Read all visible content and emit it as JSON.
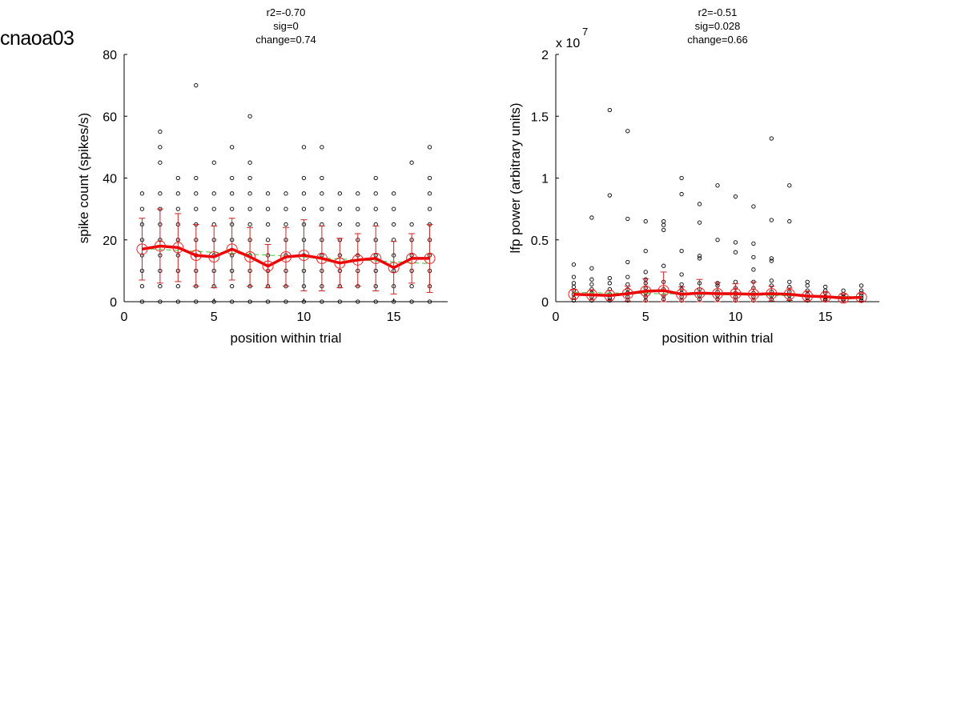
{
  "page_label": "cnaoa03",
  "colors": {
    "mean_line": "#ee0000",
    "mean_marker": "#ee2222",
    "error_bar": "#cc2222",
    "fit_line": "#33cc33",
    "points": "#000000"
  },
  "chart_data": [
    {
      "type": "scatter",
      "title_lines": [
        "r2=-0.70",
        "sig=0",
        "change=0.74"
      ],
      "xlabel": "position within trial",
      "ylabel": "spike count (spikes/s)",
      "exponent_label": "",
      "xlim": [
        0,
        18
      ],
      "ylim": [
        0,
        80
      ],
      "x_ticks": [
        0,
        5,
        10,
        15
      ],
      "x_tick_labels": [
        "0",
        "5",
        "10",
        "15"
      ],
      "y_ticks": [
        0,
        20,
        40,
        60,
        80
      ],
      "y_tick_labels": [
        "0",
        "20",
        "40",
        "60",
        "80"
      ],
      "mean": {
        "x": [
          1,
          2,
          3,
          4,
          5,
          6,
          7,
          8,
          9,
          10,
          11,
          12,
          13,
          14,
          15,
          16,
          17
        ],
        "y": [
          17,
          18,
          17.5,
          15,
          14.5,
          17,
          14.5,
          11.5,
          14.5,
          15,
          14,
          12.5,
          13.5,
          14,
          11,
          14,
          14
        ],
        "err": [
          10,
          12,
          11,
          10,
          10,
          10,
          9.5,
          7,
          9.5,
          11.5,
          10.5,
          8,
          8.5,
          10.5,
          8.5,
          8,
          11
        ]
      },
      "fit": {
        "x": [
          1,
          17
        ],
        "y": [
          17.2,
          12.3
        ]
      },
      "points": {
        "x": [
          1,
          1,
          1,
          1,
          1,
          1,
          1,
          1,
          2,
          2,
          2,
          2,
          2,
          2,
          2,
          2,
          2,
          2,
          2,
          3,
          3,
          3,
          3,
          3,
          3,
          3,
          3,
          3,
          4,
          4,
          4,
          4,
          4,
          4,
          4,
          4,
          4,
          4,
          5,
          5,
          5,
          5,
          5,
          5,
          5,
          5,
          5,
          6,
          6,
          6,
          6,
          6,
          6,
          6,
          6,
          6,
          6,
          7,
          7,
          7,
          7,
          7,
          7,
          7,
          7,
          7,
          7,
          7,
          8,
          8,
          8,
          8,
          8,
          8,
          8,
          8,
          9,
          9,
          9,
          9,
          9,
          9,
          9,
          9,
          10,
          10,
          10,
          10,
          10,
          10,
          10,
          10,
          10,
          10,
          11,
          11,
          11,
          11,
          11,
          11,
          11,
          11,
          11,
          11,
          12,
          12,
          12,
          12,
          12,
          12,
          12,
          12,
          13,
          13,
          13,
          13,
          13,
          13,
          13,
          13,
          14,
          14,
          14,
          14,
          14,
          14,
          14,
          14,
          14,
          15,
          15,
          15,
          15,
          15,
          15,
          15,
          15,
          16,
          16,
          16,
          16,
          16,
          16,
          16,
          17,
          17,
          17,
          17,
          17,
          17,
          17,
          17,
          17,
          17
        ],
        "y": [
          0,
          5,
          10,
          15,
          20,
          25,
          30,
          35,
          0,
          5,
          10,
          15,
          20,
          25,
          30,
          35,
          45,
          50,
          55,
          0,
          5,
          10,
          15,
          20,
          25,
          30,
          35,
          40,
          0,
          5,
          10,
          15,
          20,
          25,
          30,
          35,
          40,
          70,
          0,
          5,
          10,
          15,
          20,
          25,
          30,
          35,
          45,
          0,
          5,
          10,
          15,
          20,
          25,
          30,
          35,
          40,
          50,
          0,
          5,
          10,
          15,
          20,
          25,
          30,
          35,
          40,
          45,
          60,
          0,
          5,
          10,
          15,
          20,
          25,
          30,
          35,
          0,
          5,
          10,
          15,
          20,
          25,
          30,
          35,
          0,
          5,
          10,
          15,
          20,
          25,
          30,
          35,
          40,
          50,
          0,
          5,
          10,
          15,
          20,
          25,
          30,
          35,
          40,
          50,
          0,
          5,
          10,
          15,
          20,
          25,
          30,
          35,
          0,
          5,
          10,
          15,
          20,
          25,
          30,
          35,
          0,
          5,
          10,
          15,
          20,
          25,
          30,
          35,
          40,
          0,
          5,
          10,
          15,
          20,
          25,
          30,
          35,
          0,
          5,
          10,
          15,
          20,
          25,
          45,
          0,
          5,
          10,
          15,
          20,
          25,
          30,
          35,
          40,
          50
        ]
      }
    },
    {
      "type": "scatter",
      "title_lines": [
        "r2=-0.51",
        "sig=0.028",
        "change=0.66"
      ],
      "xlabel": "position within trial",
      "ylabel": "lfp power (arbitrary units)",
      "exponent_label": "x 10",
      "exponent_power": "7",
      "xlim": [
        0,
        18
      ],
      "ylim": [
        0,
        2
      ],
      "x_ticks": [
        0,
        5,
        10,
        15
      ],
      "x_tick_labels": [
        "0",
        "5",
        "10",
        "15"
      ],
      "y_ticks": [
        0,
        0.5,
        1,
        1.5,
        2
      ],
      "y_tick_labels": [
        "0",
        "0.5",
        "1",
        "1.5",
        "2"
      ],
      "mean": {
        "x": [
          1,
          2,
          3,
          4,
          5,
          6,
          7,
          8,
          9,
          10,
          11,
          12,
          13,
          14,
          15,
          16,
          17
        ],
        "y": [
          0.06,
          0.055,
          0.05,
          0.065,
          0.085,
          0.09,
          0.06,
          0.07,
          0.065,
          0.065,
          0.06,
          0.065,
          0.06,
          0.045,
          0.04,
          0.03,
          0.035
        ],
        "err": [
          0.04,
          0.04,
          0.04,
          0.06,
          0.1,
          0.15,
          0.06,
          0.11,
          0.09,
          0.08,
          0.1,
          0.06,
          0.05,
          0.04,
          0.04,
          0.03,
          0.03
        ]
      },
      "fit": {
        "x": [
          1,
          17
        ],
        "y": [
          0.075,
          0.04
        ]
      },
      "points": {
        "x": [
          1,
          1,
          1,
          1,
          1,
          1,
          1,
          1,
          2,
          2,
          2,
          2,
          2,
          2,
          2,
          2,
          3,
          3,
          3,
          3,
          3,
          3,
          3,
          3,
          4,
          4,
          4,
          4,
          4,
          4,
          4,
          4,
          4,
          5,
          5,
          5,
          5,
          5,
          5,
          5,
          5,
          5,
          6,
          6,
          6,
          6,
          6,
          6,
          6,
          6,
          7,
          7,
          7,
          7,
          7,
          7,
          7,
          7,
          7,
          8,
          8,
          8,
          8,
          8,
          8,
          8,
          8,
          9,
          9,
          9,
          9,
          9,
          9,
          9,
          10,
          10,
          10,
          10,
          10,
          10,
          10,
          10,
          11,
          11,
          11,
          11,
          11,
          11,
          11,
          11,
          11,
          12,
          12,
          12,
          12,
          12,
          12,
          12,
          12,
          12,
          13,
          13,
          13,
          13,
          13,
          13,
          13,
          14,
          14,
          14,
          14,
          14,
          14,
          15,
          15,
          15,
          15,
          15,
          15,
          16,
          16,
          16,
          16,
          16,
          17,
          17,
          17,
          17,
          17,
          17
        ],
        "y": [
          0.3,
          0.2,
          0.15,
          0.12,
          0.09,
          0.06,
          0.03,
          0.01,
          0.68,
          0.27,
          0.18,
          0.14,
          0.1,
          0.07,
          0.04,
          0.01,
          1.55,
          0.86,
          0.19,
          0.15,
          0.1,
          0.06,
          0.03,
          0.01,
          1.38,
          0.67,
          0.32,
          0.2,
          0.14,
          0.1,
          0.07,
          0.04,
          0.01,
          0.65,
          0.41,
          0.24,
          0.18,
          0.15,
          0.11,
          0.07,
          0.04,
          0.01,
          0.65,
          0.62,
          0.58,
          0.29,
          0.16,
          0.1,
          0.05,
          0.02,
          1.0,
          0.87,
          0.41,
          0.22,
          0.14,
          0.1,
          0.07,
          0.04,
          0.01,
          0.79,
          0.64,
          0.37,
          0.35,
          0.15,
          0.1,
          0.05,
          0.02,
          0.94,
          0.5,
          0.15,
          0.13,
          0.08,
          0.05,
          0.02,
          0.85,
          0.48,
          0.4,
          0.16,
          0.11,
          0.07,
          0.04,
          0.01,
          0.77,
          0.47,
          0.36,
          0.26,
          0.16,
          0.11,
          0.07,
          0.04,
          0.01,
          1.32,
          0.66,
          0.35,
          0.33,
          0.17,
          0.13,
          0.08,
          0.05,
          0.02,
          0.94,
          0.65,
          0.16,
          0.12,
          0.08,
          0.05,
          0.02,
          0.16,
          0.13,
          0.09,
          0.06,
          0.03,
          0.01,
          0.12,
          0.09,
          0.07,
          0.04,
          0.02,
          0.01,
          0.09,
          0.06,
          0.04,
          0.02,
          0.01,
          0.13,
          0.09,
          0.07,
          0.05,
          0.03,
          0.01
        ]
      }
    }
  ]
}
